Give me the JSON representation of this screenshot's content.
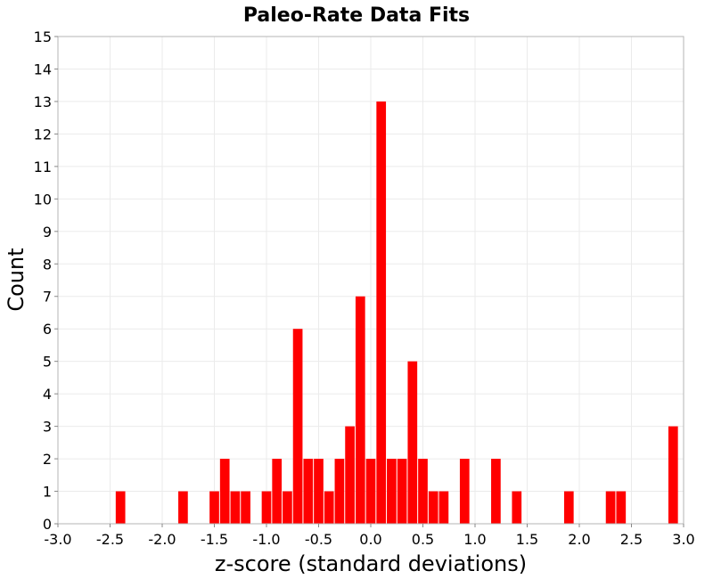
{
  "chart_data": {
    "type": "bar",
    "title": "Paleo-Rate Data Fits",
    "xlabel": "z-score (standard deviations)",
    "ylabel": "Count",
    "xlim": [
      -3.0,
      3.0
    ],
    "ylim": [
      0,
      15
    ],
    "grid": true,
    "bar_color": "#ff0000",
    "bin_width": 0.1,
    "x_ticks": [
      "-3.0",
      "-2.5",
      "-2.0",
      "-1.5",
      "-1.0",
      "-0.5",
      "0.0",
      "0.5",
      "1.0",
      "1.5",
      "2.0",
      "2.5",
      "3.0"
    ],
    "y_ticks": [
      "0",
      "1",
      "2",
      "3",
      "4",
      "5",
      "6",
      "7",
      "8",
      "9",
      "10",
      "11",
      "12",
      "13",
      "14",
      "15"
    ],
    "bins": [
      {
        "x": -2.4,
        "count": 1
      },
      {
        "x": -1.8,
        "count": 1
      },
      {
        "x": -1.5,
        "count": 1
      },
      {
        "x": -1.4,
        "count": 2
      },
      {
        "x": -1.3,
        "count": 1
      },
      {
        "x": -1.2,
        "count": 1
      },
      {
        "x": -1.0,
        "count": 1
      },
      {
        "x": -0.9,
        "count": 2
      },
      {
        "x": -0.8,
        "count": 1
      },
      {
        "x": -0.7,
        "count": 6
      },
      {
        "x": -0.6,
        "count": 2
      },
      {
        "x": -0.5,
        "count": 2
      },
      {
        "x": -0.4,
        "count": 1
      },
      {
        "x": -0.3,
        "count": 2
      },
      {
        "x": -0.2,
        "count": 3
      },
      {
        "x": -0.1,
        "count": 7
      },
      {
        "x": 0.0,
        "count": 2
      },
      {
        "x": 0.1,
        "count": 13
      },
      {
        "x": 0.2,
        "count": 2
      },
      {
        "x": 0.3,
        "count": 2
      },
      {
        "x": 0.4,
        "count": 5
      },
      {
        "x": 0.5,
        "count": 2
      },
      {
        "x": 0.6,
        "count": 1
      },
      {
        "x": 0.7,
        "count": 1
      },
      {
        "x": 0.9,
        "count": 2
      },
      {
        "x": 1.2,
        "count": 2
      },
      {
        "x": 1.4,
        "count": 1
      },
      {
        "x": 1.9,
        "count": 1
      },
      {
        "x": 2.3,
        "count": 1
      },
      {
        "x": 2.4,
        "count": 1
      },
      {
        "x": 2.9,
        "count": 3
      }
    ]
  }
}
